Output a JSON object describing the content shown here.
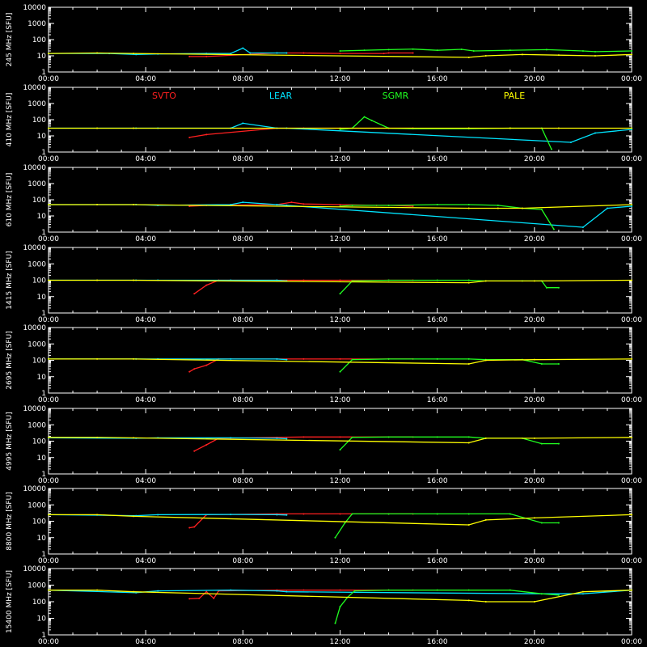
{
  "chart_data": [
    {
      "type": "line",
      "ylabel": "245 MHz [SFU]",
      "ylim": [
        1,
        10000
      ],
      "yscale": "log",
      "ytick_labels": [
        "1",
        "10",
        "100",
        "1000",
        "10000"
      ],
      "xlim": [
        "00:00",
        "24:00"
      ],
      "xtick_labels": [
        "00:00",
        "04:00",
        "08:00",
        "12:00",
        "16:00",
        "20:00",
        "00:00"
      ],
      "series": [
        {
          "name": "SVTO",
          "color": "#ff2020",
          "x": [
            5.8,
            6.5,
            9.4,
            10.5,
            12.0,
            13.8,
            14.0,
            15.0
          ],
          "y": [
            9,
            9,
            15,
            15,
            14,
            14,
            15,
            15
          ]
        },
        {
          "name": "LEAR",
          "color": "#00e5ff",
          "x": [
            0.0,
            2.5,
            3.6,
            4.5,
            6.5,
            7.5,
            8.0,
            8.3,
            9.4,
            9.8
          ],
          "y": [
            14,
            14,
            12,
            13,
            14,
            14,
            30,
            15,
            15,
            15
          ]
        },
        {
          "name": "SGMR",
          "color": "#20ff20",
          "x": [
            12.0,
            13.0,
            14.0,
            15.0,
            16.0,
            17.0,
            17.5,
            19.0,
            20.5,
            22.0,
            22.5,
            24.0
          ],
          "y": [
            20,
            22,
            24,
            26,
            22,
            25,
            20,
            22,
            24,
            20,
            18,
            20
          ]
        },
        {
          "name": "PALE",
          "color": "#ffff00",
          "x": [
            0.0,
            2.0,
            3.5,
            17.3,
            18.0,
            19.5,
            21.0,
            22.5,
            24.0
          ],
          "y": [
            14,
            15,
            14,
            8,
            10,
            12,
            11,
            10,
            12
          ]
        }
      ]
    },
    {
      "type": "line",
      "ylabel": "410 MHz [SFU]",
      "ylim": [
        1,
        10000
      ],
      "yscale": "log",
      "ytick_labels": [
        "1",
        "10",
        "100",
        "1000",
        "10000"
      ],
      "xlim": [
        "00:00",
        "24:00"
      ],
      "xtick_labels": [
        "00:00",
        "04:00",
        "08:00",
        "12:00",
        "16:00",
        "20:00",
        "00:00"
      ],
      "legend": [
        "SVTO",
        "LEAR",
        "SGMR",
        "PALE"
      ],
      "series": [
        {
          "name": "SVTO",
          "color": "#ff2020",
          "x": [
            5.8,
            6.5,
            9.4,
            10.5,
            12.0,
            14.0,
            15.0
          ],
          "y": [
            8,
            12,
            30,
            30,
            30,
            30,
            30
          ]
        },
        {
          "name": "LEAR",
          "color": "#00e5ff",
          "x": [
            0.0,
            3.6,
            4.5,
            7.5,
            8.0,
            9.4,
            9.8,
            21.5,
            22.5,
            24.0
          ],
          "y": [
            30,
            30,
            30,
            30,
            60,
            30,
            30,
            4,
            15,
            25
          ]
        },
        {
          "name": "SGMR",
          "color": "#20ff20",
          "x": [
            12.0,
            12.5,
            13.0,
            13.3,
            14.0,
            15.0,
            17.3,
            19.0,
            20.3,
            20.7
          ],
          "y": [
            25,
            30,
            150,
            90,
            30,
            28,
            28,
            30,
            30,
            1.5
          ]
        },
        {
          "name": "PALE",
          "color": "#ffff00",
          "x": [
            0.0,
            2.0,
            3.5,
            17.3,
            19.0,
            21.0,
            24.0
          ],
          "y": [
            30,
            30,
            30,
            30,
            30,
            30,
            30
          ]
        }
      ]
    },
    {
      "type": "line",
      "ylabel": "610 MHz [SFU]",
      "ylim": [
        1,
        10000
      ],
      "yscale": "log",
      "ytick_labels": [
        "1",
        "10",
        "100",
        "1000",
        "10000"
      ],
      "xlim": [
        "00:00",
        "24:00"
      ],
      "xtick_labels": [
        "00:00",
        "04:00",
        "08:00",
        "12:00",
        "16:00",
        "20:00",
        "00:00"
      ],
      "series": [
        {
          "name": "SVTO",
          "color": "#ff2020",
          "x": [
            5.8,
            6.5,
            9.4,
            10.0,
            10.5,
            12.0,
            13.5,
            14.0,
            15.0
          ],
          "y": [
            40,
            45,
            50,
            70,
            55,
            50,
            45,
            45,
            40
          ]
        },
        {
          "name": "LEAR",
          "color": "#00e5ff",
          "x": [
            0.0,
            3.6,
            4.5,
            7.5,
            8.0,
            9.4,
            9.8,
            22.0,
            23.0,
            24.0
          ],
          "y": [
            50,
            50,
            45,
            50,
            70,
            50,
            45,
            2,
            30,
            40
          ]
        },
        {
          "name": "SGMR",
          "color": "#20ff20",
          "x": [
            12.0,
            12.5,
            14.0,
            16.0,
            17.3,
            18.5,
            19.5,
            20.3,
            20.8
          ],
          "y": [
            40,
            45,
            45,
            50,
            50,
            45,
            30,
            25,
            1.5
          ]
        },
        {
          "name": "PALE",
          "color": "#ffff00",
          "x": [
            0.0,
            2.0,
            3.5,
            17.3,
            18.5,
            19.5,
            24.0
          ],
          "y": [
            50,
            50,
            50,
            30,
            30,
            30,
            50
          ]
        }
      ]
    },
    {
      "type": "line",
      "ylabel": "1415 MHz [SFU]",
      "ylim": [
        1,
        10000
      ],
      "yscale": "log",
      "ytick_labels": [
        "1",
        "10",
        "100",
        "1000",
        "10000"
      ],
      "xlim": [
        "00:00",
        "24:00"
      ],
      "xtick_labels": [
        "00:00",
        "04:00",
        "08:00",
        "12:00",
        "16:00",
        "20:00",
        "00:00"
      ],
      "series": [
        {
          "name": "SVTO",
          "color": "#ff2020",
          "x": [
            6.0,
            6.5,
            7.0,
            9.4,
            10.5,
            12.0,
            14.0,
            15.0
          ],
          "y": [
            15,
            50,
            100,
            100,
            100,
            100,
            100,
            100
          ]
        },
        {
          "name": "LEAR",
          "color": "#00e5ff",
          "x": [
            0.0,
            3.6,
            4.5,
            7.5,
            9.4,
            9.8
          ],
          "y": [
            100,
            100,
            100,
            100,
            100,
            90
          ]
        },
        {
          "name": "SGMR",
          "color": "#20ff20",
          "x": [
            12.0,
            12.5,
            14.0,
            16.0,
            17.3,
            18.0,
            19.5,
            20.3,
            20.5,
            21.0
          ],
          "y": [
            15,
            90,
            100,
            100,
            100,
            90,
            90,
            90,
            35,
            35
          ]
        },
        {
          "name": "PALE",
          "color": "#ffff00",
          "x": [
            0.0,
            2.0,
            3.5,
            17.3,
            18.0,
            20.0,
            24.0
          ],
          "y": [
            100,
            100,
            100,
            70,
            90,
            90,
            100
          ]
        }
      ]
    },
    {
      "type": "line",
      "ylabel": "2695 MHz [SFU]",
      "ylim": [
        1,
        10000
      ],
      "yscale": "log",
      "ytick_labels": [
        "1",
        "10",
        "100",
        "1000",
        "10000"
      ],
      "xlim": [
        "00:00",
        "24:00"
      ],
      "xtick_labels": [
        "00:00",
        "04:00",
        "08:00",
        "12:00",
        "16:00",
        "20:00",
        "00:00"
      ],
      "series": [
        {
          "name": "SVTO",
          "color": "#ff2020",
          "x": [
            5.8,
            6.0,
            6.5,
            7.0,
            9.4,
            10.5,
            12.0,
            14.0,
            15.0
          ],
          "y": [
            20,
            30,
            50,
            120,
            120,
            120,
            120,
            120,
            120
          ]
        },
        {
          "name": "LEAR",
          "color": "#00e5ff",
          "x": [
            0.0,
            3.6,
            4.5,
            7.5,
            9.4,
            9.8
          ],
          "y": [
            120,
            120,
            120,
            120,
            120,
            110
          ]
        },
        {
          "name": "SGMR",
          "color": "#20ff20",
          "x": [
            12.0,
            12.5,
            14.0,
            16.0,
            17.3,
            18.0,
            19.5,
            20.3,
            21.0
          ],
          "y": [
            20,
            110,
            120,
            120,
            120,
            110,
            110,
            60,
            60
          ]
        },
        {
          "name": "PALE",
          "color": "#ffff00",
          "x": [
            0.0,
            2.0,
            3.5,
            17.3,
            18.0,
            20.0,
            24.0
          ],
          "y": [
            120,
            120,
            120,
            60,
            100,
            110,
            120
          ]
        }
      ]
    },
    {
      "type": "line",
      "ylabel": "4995 MHz [SFU]",
      "ylim": [
        1,
        10000
      ],
      "yscale": "log",
      "ytick_labels": [
        "1",
        "10",
        "100",
        "1000",
        "10000"
      ],
      "xlim": [
        "00:00",
        "24:00"
      ],
      "xtick_labels": [
        "00:00",
        "04:00",
        "08:00",
        "12:00",
        "16:00",
        "20:00",
        "00:00"
      ],
      "series": [
        {
          "name": "SVTO",
          "color": "#ff2020",
          "x": [
            6.0,
            6.5,
            7.0,
            9.4,
            10.5,
            12.0,
            14.0,
            15.0
          ],
          "y": [
            25,
            60,
            150,
            170,
            180,
            180,
            180,
            180
          ]
        },
        {
          "name": "LEAR",
          "color": "#00e5ff",
          "x": [
            0.0,
            3.6,
            4.5,
            7.5,
            9.4,
            9.8
          ],
          "y": [
            160,
            150,
            160,
            160,
            150,
            140
          ]
        },
        {
          "name": "SGMR",
          "color": "#20ff20",
          "x": [
            12.0,
            12.5,
            14.0,
            16.0,
            17.3,
            18.0,
            19.5,
            20.3,
            21.0
          ],
          "y": [
            30,
            170,
            180,
            180,
            180,
            150,
            150,
            70,
            70
          ]
        },
        {
          "name": "PALE",
          "color": "#ffff00",
          "x": [
            0.0,
            2.0,
            3.5,
            17.3,
            18.0,
            20.0,
            24.0
          ],
          "y": [
            170,
            170,
            160,
            80,
            150,
            150,
            170
          ]
        }
      ]
    },
    {
      "type": "line",
      "ylabel": "8800 MHz [SFU]",
      "ylim": [
        1,
        10000
      ],
      "yscale": "log",
      "ytick_labels": [
        "1",
        "10",
        "100",
        "1000",
        "10000"
      ],
      "xlim": [
        "00:00",
        "24:00"
      ],
      "xtick_labels": [
        "00:00",
        "04:00",
        "08:00",
        "12:00",
        "16:00",
        "20:00",
        "00:00"
      ],
      "series": [
        {
          "name": "SVTO",
          "color": "#ff2020",
          "x": [
            5.8,
            6.0,
            6.5,
            9.4,
            10.5,
            12.0,
            14.0,
            15.0
          ],
          "y": [
            40,
            45,
            250,
            280,
            280,
            280,
            280,
            280
          ]
        },
        {
          "name": "LEAR",
          "color": "#00e5ff",
          "x": [
            0.0,
            3.6,
            4.5,
            7.5,
            9.4,
            9.8
          ],
          "y": [
            250,
            220,
            250,
            260,
            250,
            240
          ]
        },
        {
          "name": "SGMR",
          "color": "#20ff20",
          "x": [
            11.8,
            12.2,
            12.5,
            14.0,
            16.0,
            17.3,
            19.0,
            20.3,
            21.0
          ],
          "y": [
            10,
            80,
            280,
            280,
            280,
            280,
            280,
            80,
            80
          ]
        },
        {
          "name": "PALE",
          "color": "#ffff00",
          "x": [
            0.0,
            2.0,
            3.5,
            17.3,
            18.0,
            20.0,
            24.0
          ],
          "y": [
            250,
            250,
            200,
            60,
            120,
            160,
            250
          ]
        }
      ]
    },
    {
      "type": "line",
      "ylabel": "15400 MHz [SFU]",
      "ylim": [
        1,
        10000
      ],
      "yscale": "log",
      "ytick_labels": [
        "1",
        "10",
        "100",
        "1000",
        "10000"
      ],
      "xlim": [
        "00:00",
        "24:00"
      ],
      "xtick_labels": [
        "00:00",
        "04:00",
        "08:00",
        "12:00",
        "16:00",
        "20:00",
        "00:00"
      ],
      "series": [
        {
          "name": "SVTO",
          "color": "#ff2020",
          "x": [
            5.8,
            6.2,
            6.5,
            6.8,
            7.0,
            9.4,
            10.5,
            12.0,
            14.0,
            15.0
          ],
          "y": [
            150,
            160,
            400,
            160,
            450,
            500,
            500,
            500,
            500,
            500
          ]
        },
        {
          "name": "LEAR",
          "color": "#00e5ff",
          "x": [
            0.0,
            3.6,
            4.5,
            7.5,
            9.4,
            9.8,
            20.3,
            22.0,
            24.0
          ],
          "y": [
            500,
            350,
            450,
            500,
            450,
            400,
            300,
            300,
            500
          ]
        },
        {
          "name": "SGMR",
          "color": "#20ff20",
          "x": [
            11.8,
            12.0,
            12.3,
            12.6,
            14.0,
            16.0,
            17.3,
            19.0,
            20.3,
            21.0
          ],
          "y": [
            5,
            50,
            180,
            450,
            500,
            500,
            500,
            500,
            300,
            250
          ]
        },
        {
          "name": "PALE",
          "color": "#ffff00",
          "x": [
            0.0,
            2.0,
            3.5,
            17.3,
            18.0,
            20.0,
            22.0,
            24.0
          ],
          "y": [
            500,
            500,
            400,
            120,
            100,
            100,
            400,
            500
          ]
        }
      ]
    }
  ]
}
